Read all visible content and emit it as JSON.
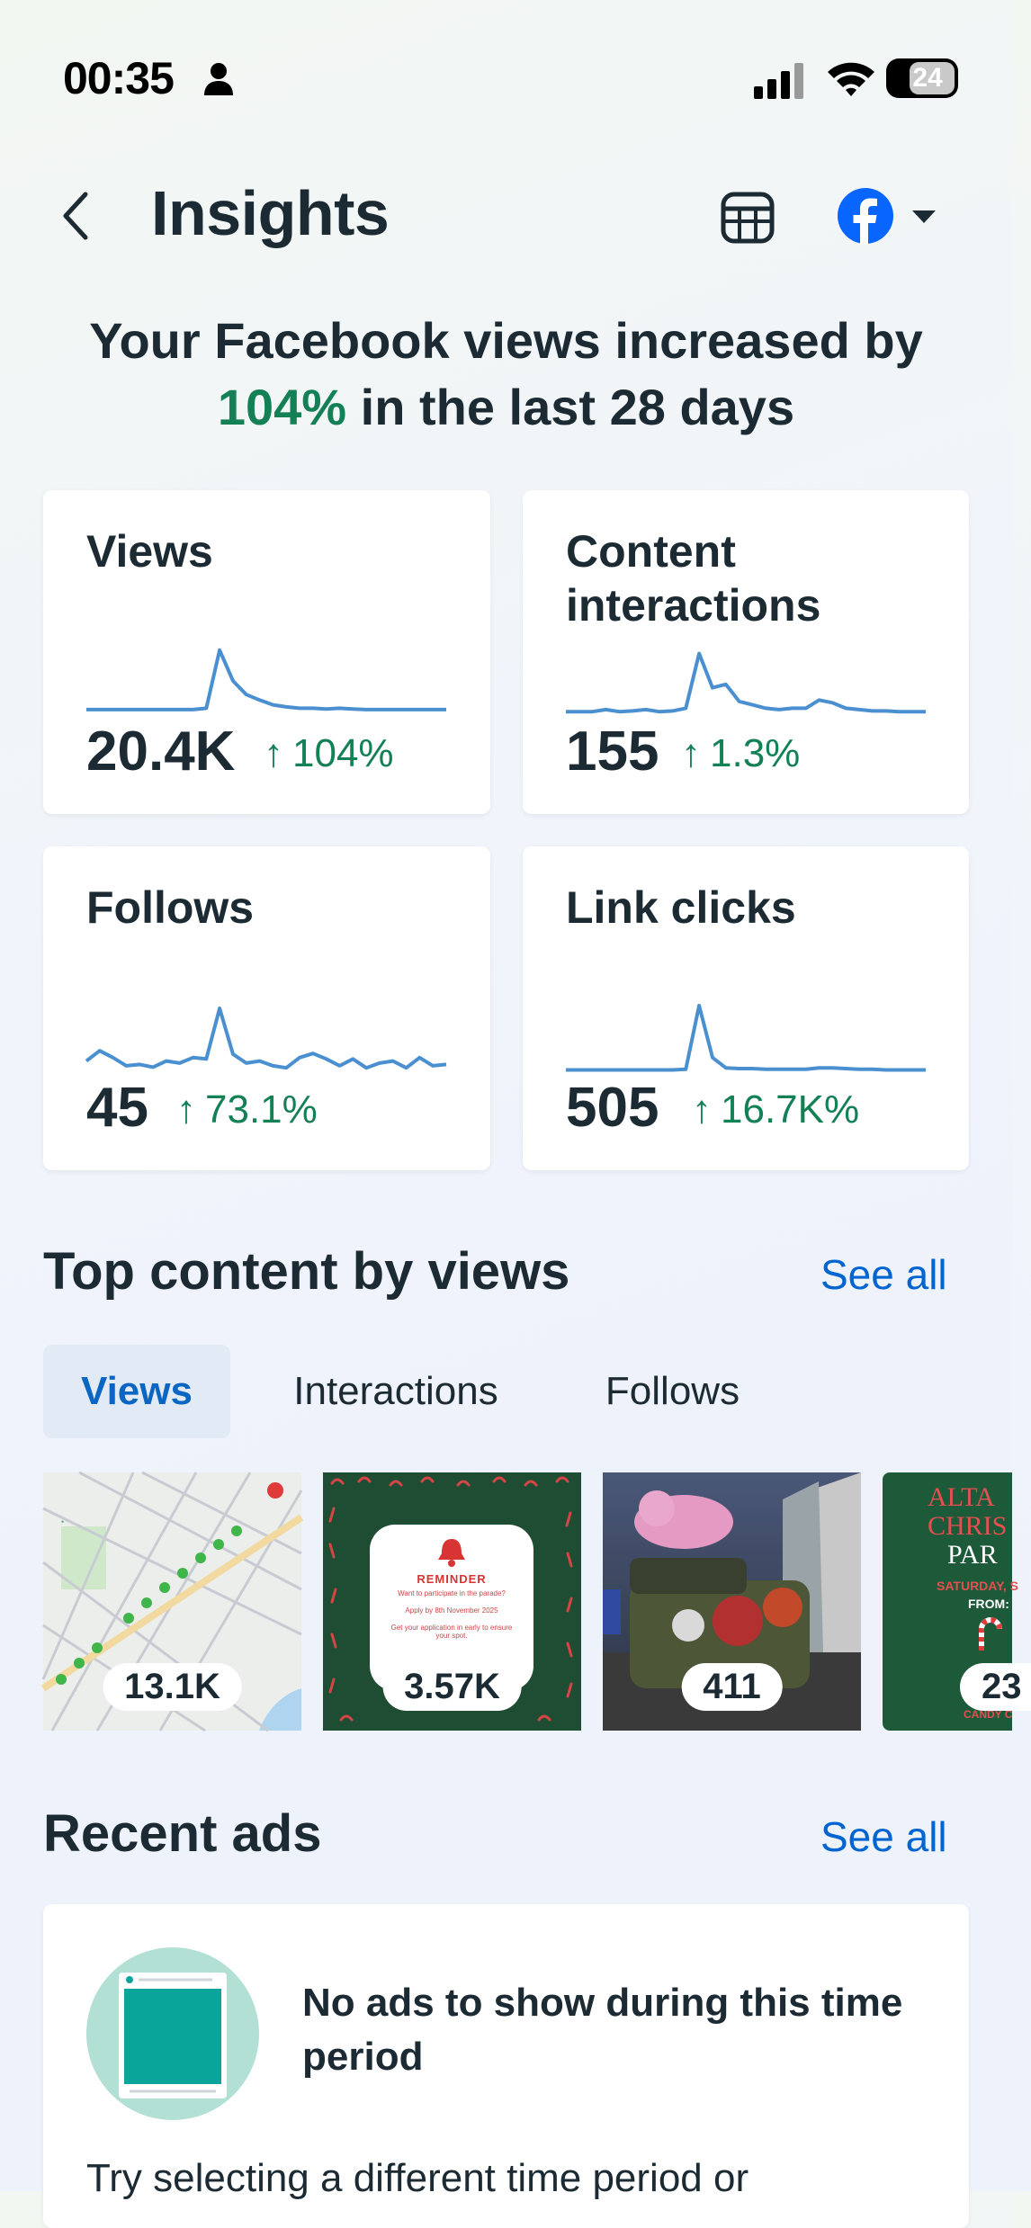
{
  "status_bar": {
    "time": "00:35",
    "battery": "24"
  },
  "header": {
    "title": "Insights"
  },
  "headline": {
    "prefix": "Your Facebook views increased by",
    "highlight": "104%",
    "suffix": "in the last 28 days"
  },
  "metrics": [
    {
      "title": "Views",
      "value": "20.4K",
      "change": "104%",
      "trend": [
        0.08,
        0.08,
        0.08,
        0.08,
        0.08,
        0.08,
        0.08,
        0.08,
        0.08,
        0.1,
        0.95,
        0.5,
        0.3,
        0.22,
        0.15,
        0.12,
        0.1,
        0.1,
        0.09,
        0.1,
        0.09,
        0.08,
        0.08,
        0.08,
        0.08,
        0.08,
        0.08,
        0.08
      ]
    },
    {
      "title": "Content interactions",
      "value": "155",
      "change": "1.3%",
      "trend": [
        0.05,
        0.05,
        0.05,
        0.08,
        0.05,
        0.06,
        0.08,
        0.05,
        0.06,
        0.1,
        0.9,
        0.4,
        0.45,
        0.2,
        0.15,
        0.1,
        0.08,
        0.1,
        0.1,
        0.22,
        0.18,
        0.1,
        0.08,
        0.06,
        0.06,
        0.05,
        0.05,
        0.05
      ]
    },
    {
      "title": "Follows",
      "value": "45",
      "change": "73.1%",
      "trend": [
        0.15,
        0.3,
        0.2,
        0.08,
        0.1,
        0.06,
        0.15,
        0.12,
        0.2,
        0.18,
        0.92,
        0.25,
        0.12,
        0.15,
        0.08,
        0.05,
        0.2,
        0.26,
        0.18,
        0.08,
        0.18,
        0.05,
        0.12,
        0.15,
        0.05,
        0.2,
        0.08,
        0.1
      ]
    },
    {
      "title": "Link clicks",
      "value": "505",
      "change": "16.7K%",
      "trend": [
        0.02,
        0.02,
        0.02,
        0.02,
        0.02,
        0.02,
        0.02,
        0.02,
        0.02,
        0.03,
        0.96,
        0.2,
        0.05,
        0.04,
        0.04,
        0.03,
        0.03,
        0.03,
        0.03,
        0.05,
        0.05,
        0.04,
        0.03,
        0.03,
        0.02,
        0.02,
        0.02,
        0.02
      ]
    }
  ],
  "top_content": {
    "title": "Top content by views",
    "see_all": "See all",
    "tabs": [
      "Views",
      "Interactions",
      "Follows"
    ],
    "items": [
      {
        "count": "13.1K"
      },
      {
        "count": "3.57K",
        "reminder_heading": "REMINDER",
        "reminder_line1": "Want to participate in the parade?",
        "reminder_line2": "Apply by 8th November 2025",
        "reminder_line3": "Get your application in early to ensure your spot."
      },
      {
        "count": "411"
      },
      {
        "count": "23",
        "partial_line1": "ALTA",
        "partial_line2": "CHRIS",
        "partial_line3": "PAR",
        "partial_line4": "SATURDAY, S",
        "partial_line5": "FROM:",
        "partial_line6": "CANDY C"
      }
    ]
  },
  "recent_ads": {
    "title": "Recent ads",
    "see_all": "See all",
    "empty_title": "No ads to show during this time period",
    "empty_body": "Try selecting a different time period or"
  },
  "colors": {
    "accent": "#0064d1",
    "positive": "#148055",
    "chart_line": "#4a90d0"
  }
}
